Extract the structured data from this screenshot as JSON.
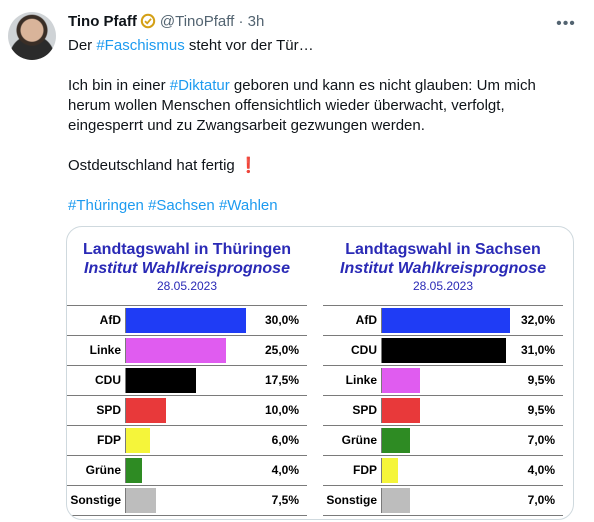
{
  "tweet": {
    "display_name": "Tino Pfaff",
    "handle": "@TinoPfaff",
    "separator": "·",
    "time": "3h",
    "more_icon": "more-horizontal-icon",
    "line1_tag": "#Faschismus",
    "line1_pre": "Der ",
    "line1_post": " steht vor der Tür…",
    "para2_pre": "Ich bin in einer ",
    "para2_tag": "#Diktatur",
    "para2_post": " geboren und kann es nicht glauben: Um mich herum wollen Menschen offensichtlich wieder überwacht, verfolgt, eingesperrt und zu Zwangsarbeit gezwungen werden.",
    "para3": "Ostdeutschland hat fertig",
    "para3_mark": "❗",
    "hashtags": [
      "#Thüringen",
      "#Sachsen",
      "#Wahlen"
    ]
  },
  "chart_data": [
    {
      "type": "bar",
      "title": "Landtagswahl in Thüringen",
      "subtitle": "Institut Wahlkreisprognose",
      "date": "28.05.2023",
      "categories": [
        "AfD",
        "Linke",
        "CDU",
        "SPD",
        "FDP",
        "Grüne",
        "Sonstige"
      ],
      "values": [
        30.0,
        25.0,
        17.5,
        10.0,
        6.0,
        4.0,
        7.5
      ],
      "value_labels": [
        "30,0%",
        "25,0%",
        "17,5%",
        "10,0%",
        "6,0%",
        "4,0%",
        "7,5%"
      ],
      "colors": [
        "#1f3cf5",
        "#e05cf0",
        "#000000",
        "#e8393a",
        "#f5f53a",
        "#2e8b23",
        "#bdbdbd"
      ],
      "xlim": [
        0,
        32
      ]
    },
    {
      "type": "bar",
      "title": "Landtagswahl in Sachsen",
      "subtitle": "Institut Wahlkreisprognose",
      "date": "28.05.2023",
      "categories": [
        "AfD",
        "CDU",
        "Linke",
        "SPD",
        "Grüne",
        "FDP",
        "Sonstige"
      ],
      "values": [
        32.0,
        31.0,
        9.5,
        9.5,
        7.0,
        4.0,
        7.0
      ],
      "value_labels": [
        "32,0%",
        "31,0%",
        "9,5%",
        "9,5%",
        "7,0%",
        "4,0%",
        "7,0%"
      ],
      "colors": [
        "#1f3cf5",
        "#000000",
        "#e05cf0",
        "#e8393a",
        "#2e8b23",
        "#f5f53a",
        "#bdbdbd"
      ],
      "xlim": [
        0,
        32
      ]
    }
  ]
}
